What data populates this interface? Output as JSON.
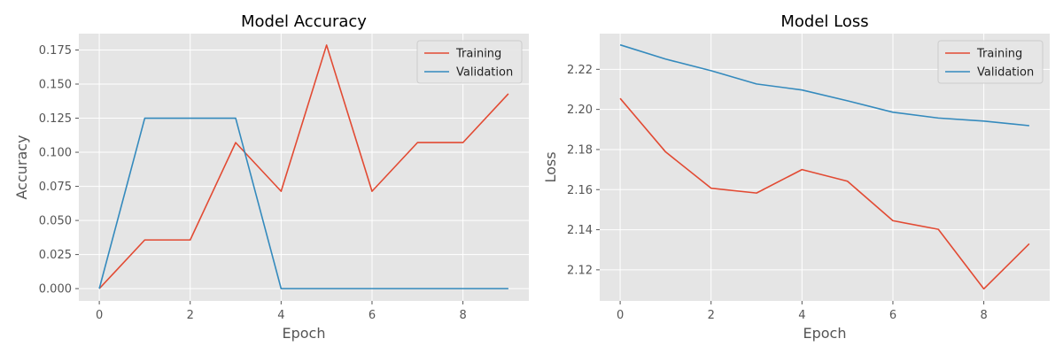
{
  "chart_data": [
    {
      "type": "line",
      "title": "Model Accuracy",
      "xlabel": "Epoch",
      "ylabel": "Accuracy",
      "xlim": [
        -0.45,
        9.45
      ],
      "ylim": [
        -0.009,
        0.187
      ],
      "xticks": [
        0,
        2,
        4,
        6,
        8
      ],
      "yticks": [
        0.0,
        0.025,
        0.05,
        0.075,
        0.1,
        0.125,
        0.15,
        0.175
      ],
      "ytick_labels": [
        "0.000",
        "0.025",
        "0.050",
        "0.075",
        "0.100",
        "0.125",
        "0.150",
        "0.175"
      ],
      "grid": true,
      "legend": "top-right",
      "x": [
        0,
        1,
        2,
        3,
        4,
        5,
        6,
        7,
        8,
        9
      ],
      "series": [
        {
          "name": "Training",
          "color": "#E24A33",
          "values": [
            0.0,
            0.0357,
            0.0357,
            0.1071,
            0.0714,
            0.1786,
            0.0714,
            0.1071,
            0.1071,
            0.1429
          ]
        },
        {
          "name": "Validation",
          "color": "#348ABD",
          "values": [
            0.0,
            0.125,
            0.125,
            0.125,
            0.0,
            0.0,
            0.0,
            0.0,
            0.0,
            0.0
          ]
        }
      ]
    },
    {
      "type": "line",
      "title": "Model Loss",
      "xlabel": "Epoch",
      "ylabel": "Loss",
      "xlim": [
        -0.45,
        9.45
      ],
      "ylim": [
        2.1045,
        2.2378
      ],
      "xticks": [
        0,
        2,
        4,
        6,
        8
      ],
      "yticks": [
        2.12,
        2.14,
        2.16,
        2.18,
        2.2,
        2.22
      ],
      "ytick_labels": [
        "2.12",
        "2.14",
        "2.16",
        "2.18",
        "2.20",
        "2.22"
      ],
      "grid": true,
      "legend": "top-right",
      "x": [
        0,
        1,
        2,
        3,
        4,
        5,
        6,
        7,
        8,
        9
      ],
      "series": [
        {
          "name": "Training",
          "color": "#E24A33",
          "values": [
            2.2055,
            2.1788,
            2.1607,
            2.1583,
            2.17,
            2.1642,
            2.1445,
            2.1402,
            2.1105,
            2.133
          ]
        },
        {
          "name": "Validation",
          "color": "#348ABD",
          "values": [
            2.2322,
            2.2251,
            2.2193,
            2.2127,
            2.2097,
            2.2043,
            2.1986,
            2.1957,
            2.1942,
            2.1919
          ]
        }
      ]
    }
  ],
  "style": {
    "plot_background": "#E5E5E5",
    "grid_color": "#FFFFFF",
    "text_color": "#555555"
  }
}
